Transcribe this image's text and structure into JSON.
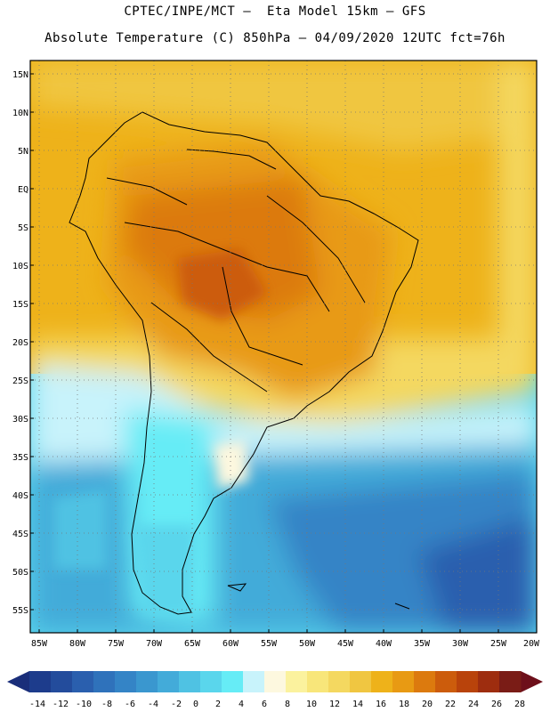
{
  "header": {
    "line1": "CPTEC/INPE/MCT –  Eta Model 15km – GFS",
    "line2": "Absolute Temperature (C) 850hPa – 04/09/2020 12UTC fct=76h"
  },
  "map": {
    "lat_labels": [
      "15N",
      "10N",
      "5N",
      "EQ",
      "5S",
      "10S",
      "15S",
      "20S",
      "25S",
      "30S",
      "35S",
      "40S",
      "45S",
      "50S",
      "55S"
    ],
    "lon_labels": [
      "85W",
      "80W",
      "75W",
      "70W",
      "65W",
      "60W",
      "55W",
      "50W",
      "45W",
      "40W",
      "35W",
      "30W",
      "25W",
      "20W"
    ]
  },
  "colorbar": {
    "ticks": [
      "-14",
      "-12",
      "-10",
      "-8",
      "-6",
      "-4",
      "-2",
      "0",
      "2",
      "4",
      "6",
      "8",
      "10",
      "12",
      "14",
      "16",
      "18",
      "20",
      "22",
      "24",
      "26",
      "28"
    ],
    "colors": [
      "#1d3c8c",
      "#234c9c",
      "#2a5fae",
      "#2f72bb",
      "#3484c6",
      "#3a97cf",
      "#43abd9",
      "#4fc2e3",
      "#5ad6ec",
      "#66ecf6",
      "#c8f3fb",
      "#fdf8df",
      "#fbf29e",
      "#f8e67a",
      "#f4d860",
      "#f0c641",
      "#eeb21a",
      "#e89a13",
      "#dc7a0e",
      "#cc5c0c",
      "#b9430b",
      "#9e2d0f",
      "#7a1c16"
    ],
    "under_color": "#1a2e7a",
    "over_color": "#6d0f1a"
  }
}
